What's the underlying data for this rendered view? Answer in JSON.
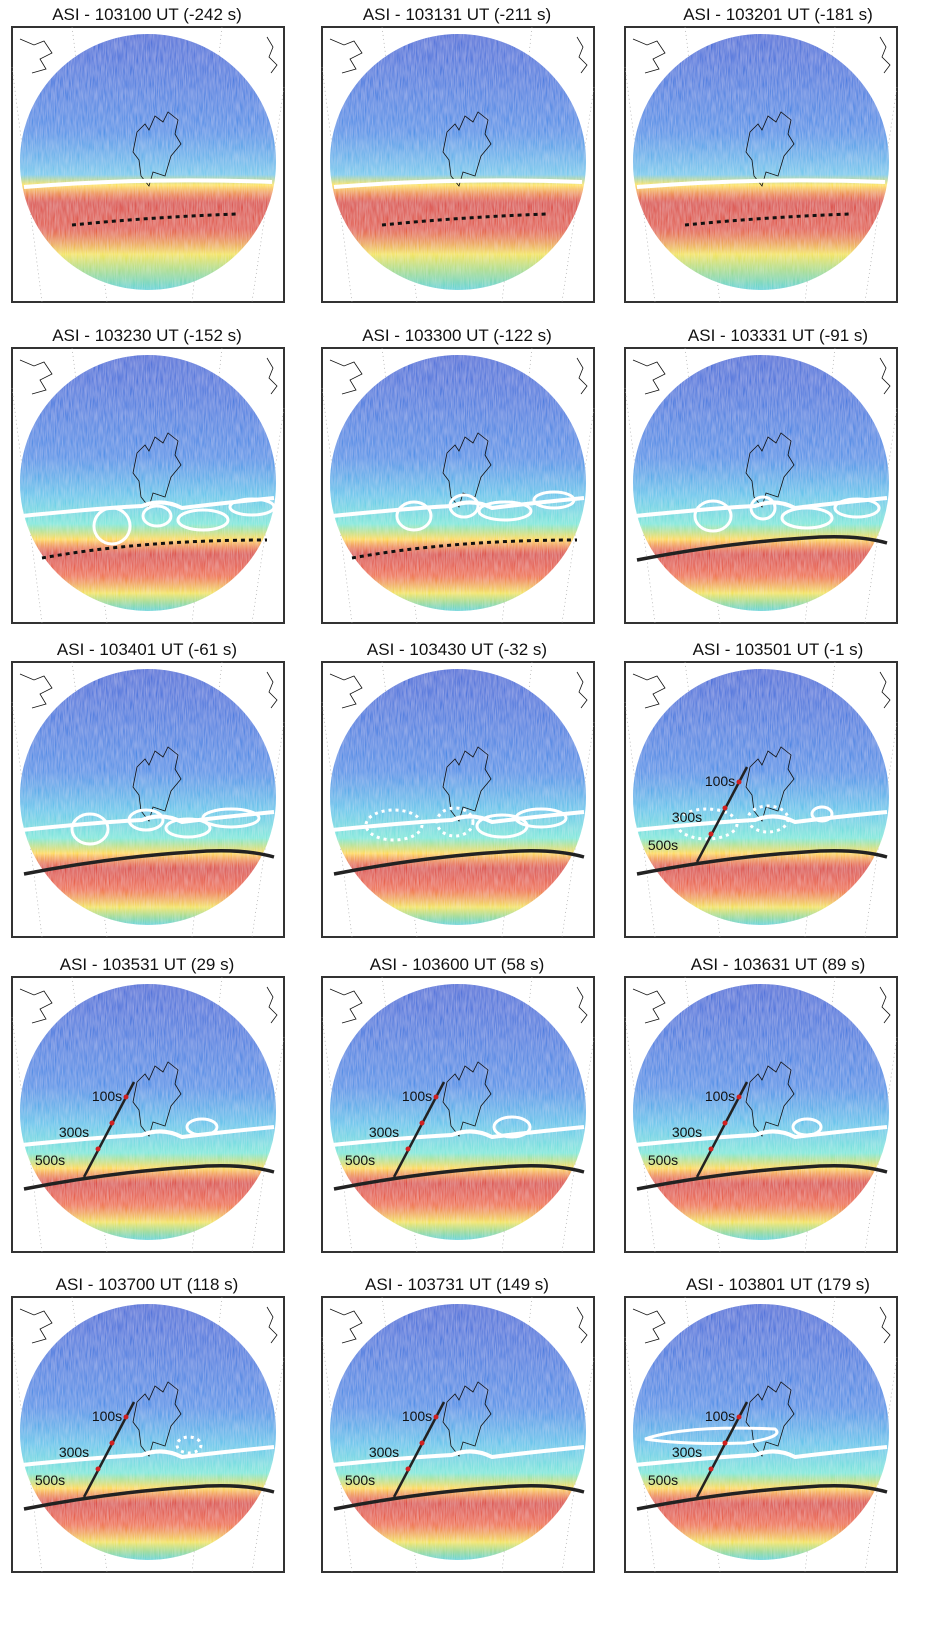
{
  "panels": [
    {
      "title": "ASI - 103100 UT (-242 s)"
    },
    {
      "title": "ASI - 103131 UT (-211 s)"
    },
    {
      "title": "ASI - 103201 UT (-181 s)"
    },
    {
      "title": "ASI - 103230 UT (-152 s)"
    },
    {
      "title": "ASI - 103300 UT (-122 s)"
    },
    {
      "title": "ASI - 103331 UT (-91 s)"
    },
    {
      "title": "ASI - 103401 UT (-61 s)"
    },
    {
      "title": "ASI - 103430 UT (-32 s)"
    },
    {
      "title": "ASI - 103501 UT (-1 s)",
      "track_labels": [
        "100s",
        "300s",
        "500s"
      ]
    },
    {
      "title": "ASI - 103531 UT (29 s)",
      "track_labels": [
        "100s",
        "300s",
        "500s"
      ]
    },
    {
      "title": "ASI - 103600 UT (58 s)",
      "track_labels": [
        "100s",
        "300s",
        "500s"
      ]
    },
    {
      "title": "ASI - 103631 UT (89 s)",
      "track_labels": [
        "100s",
        "300s",
        "500s"
      ]
    },
    {
      "title": "ASI - 103700 UT (118 s)",
      "track_labels": [
        "100s",
        "300s",
        "500s"
      ]
    },
    {
      "title": "ASI - 103731 UT (149 s)",
      "track_labels": [
        "100s",
        "300s",
        "500s"
      ]
    },
    {
      "title": "ASI - 103801 UT (179 s)",
      "track_labels": [
        "100s",
        "300s",
        "500s"
      ]
    }
  ]
}
